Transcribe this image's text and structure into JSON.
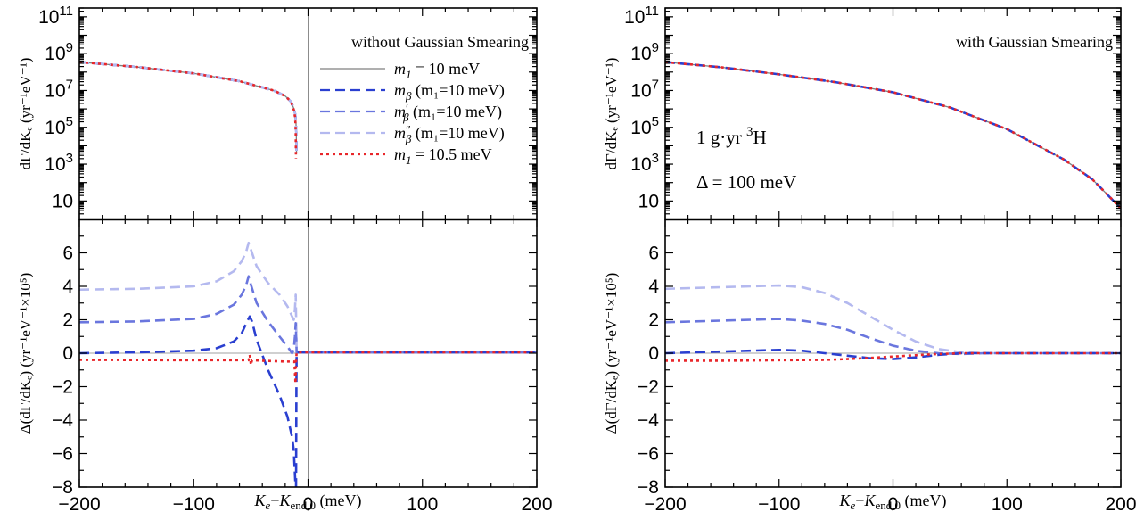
{
  "chart_data": [
    {
      "id": "left",
      "type": "line",
      "panel_annotation": "without Gaussian Smearing",
      "annotations": [],
      "xlabel": {
        "italic": "K",
        "sub_e": "e",
        "dash": "−",
        "italic2": "K",
        "sub_end": "end,0",
        "unit": " (meV)"
      },
      "xlim": [
        -200,
        200
      ],
      "xticks": [
        "−200",
        "−100",
        "0",
        "100",
        "200"
      ],
      "top": {
        "ylabel": "dΓ/dKₑ (yr⁻¹eV⁻¹)",
        "yscale": "log",
        "ylim": [
          1,
          300000000000.0
        ],
        "yticks": [
          {
            "value": 100000000000.0,
            "base": "10",
            "exp": "11"
          },
          {
            "value": 1000000000.0,
            "base": "10",
            "exp": "9"
          },
          {
            "value": 10000000.0,
            "base": "10",
            "exp": "7"
          },
          {
            "value": 100000.0,
            "base": "10",
            "exp": "5"
          },
          {
            "value": 1000.0,
            "base": "10",
            "exp": "3"
          },
          {
            "value": 10,
            "base": "10",
            "exp": ""
          }
        ],
        "series": [
          {
            "key": "m1",
            "color": "#7f7f7f",
            "x": [
              -200,
              -150,
              -100,
              -60,
              -30,
              -20,
              -15,
              -12,
              -11,
              -10.6,
              -10.3,
              -10.1
            ],
            "y": [
              350000000.0,
              190000000.0,
              85000000.0,
              32000000.0,
              10000000.0,
              5000000.0,
              2500000.0,
              900000.0,
              400000.0,
              200000.0,
              50000.0,
              4000.0
            ]
          },
          {
            "key": "mb",
            "color": "#2a3fd0",
            "x": [
              -200,
              -150,
              -100,
              -60,
              -30,
              -20,
              -15,
              -12,
              -11,
              -10.6,
              -10.3,
              -10.1
            ],
            "y": [
              350000000.0,
              190000000.0,
              85000000.0,
              32000000.0,
              10000000.0,
              5000000.0,
              2500000.0,
              900000.0,
              400000.0,
              200000.0,
              50000.0,
              4000.0
            ]
          },
          {
            "key": "mbp",
            "color": "#6a76de",
            "x": [
              -200,
              -150,
              -100,
              -60,
              -30,
              -20,
              -15,
              -12,
              -11,
              -10.6,
              -10.3,
              -10.1
            ],
            "y": [
              350000000.0,
              190000000.0,
              85000000.0,
              32000000.0,
              10000000.0,
              5000000.0,
              2500000.0,
              900000.0,
              400000.0,
              200000.0,
              50000.0,
              4000.0
            ]
          },
          {
            "key": "mbpp",
            "color": "#b4b9ef",
            "x": [
              -200,
              -150,
              -100,
              -60,
              -30,
              -20,
              -15,
              -12,
              -11,
              -10.6,
              -10.3,
              -10.1
            ],
            "y": [
              350000000.0,
              190000000.0,
              85000000.0,
              32000000.0,
              10000000.0,
              5000000.0,
              2500000.0,
              900000.0,
              400000.0,
              200000.0,
              50000.0,
              4000.0
            ]
          },
          {
            "key": "m105",
            "color": "#e8262a",
            "x": [
              -200,
              -150,
              -100,
              -60,
              -30,
              -20,
              -15,
              -12.5,
              -11.5,
              -11.1,
              -10.8,
              -10.6
            ],
            "y": [
              350000000.0,
              190000000.0,
              85000000.0,
              32000000.0,
              10000000.0,
              5000000.0,
              2500000.0,
              900000.0,
              400000.0,
              200000.0,
              50000.0,
              2000.0
            ]
          }
        ],
        "legend": [
          {
            "key": "m1",
            "sym": "m",
            "sub": "1",
            "prime": "",
            "suffix": " = 10 meV",
            "dash": "solid",
            "color": "#7f7f7f"
          },
          {
            "key": "mb",
            "sym": "m",
            "sub": "β",
            "prime": "",
            "suffix": " (m₁=10 meV)",
            "dash": "dashed",
            "color": "#2a3fd0"
          },
          {
            "key": "mbp",
            "sym": "m",
            "sub": "β",
            "prime": "′",
            "suffix": " (m₁=10 meV)",
            "dash": "dashed",
            "color": "#6a76de"
          },
          {
            "key": "mbpp",
            "sym": "m",
            "sub": "β",
            "prime": "″",
            "suffix": " (m₁=10 meV)",
            "dash": "dashed",
            "color": "#b4b9ef"
          },
          {
            "key": "m105",
            "sym": "m",
            "sub": "1",
            "prime": "",
            "suffix": " = 10.5 meV",
            "dash": "dotted",
            "color": "#e8262a"
          }
        ]
      },
      "bottom": {
        "ylabel": "Δ(dΓ/dKₑ) (yr⁻¹eV⁻¹×10⁵)",
        "ylim": [
          -8,
          8
        ],
        "yticks": [
          "6",
          "4",
          "2",
          "0",
          "−2",
          "−4",
          "−6",
          "−8"
        ],
        "series": [
          {
            "key": "mbpp",
            "color": "#b4b9ef",
            "x": [
              -200,
              -150,
              -100,
              -80,
              -65,
              -58,
              -54,
              -52,
              -50,
              -45,
              -35,
              -25,
              -18,
              -14,
              -12.5,
              -11.5,
              -10.8,
              -10.3,
              -10,
              0,
              200
            ],
            "y": [
              3.8,
              3.85,
              4.0,
              4.3,
              4.9,
              5.5,
              6.1,
              6.6,
              6.2,
              5.2,
              4.2,
              3.5,
              2.8,
              2.2,
              2.0,
              2.6,
              3.5,
              1.5,
              0.05,
              0.05,
              0.05
            ]
          },
          {
            "key": "mbp",
            "color": "#6a76de",
            "x": [
              -200,
              -150,
              -100,
              -80,
              -65,
              -58,
              -54,
              -52,
              -50,
              -45,
              -35,
              -25,
              -18,
              -14,
              -12.5,
              -11.5,
              -10.8,
              -10.3,
              -10,
              0,
              200
            ],
            "y": [
              1.85,
              1.9,
              2.05,
              2.35,
              2.9,
              3.5,
              4.1,
              4.6,
              4.1,
              3.0,
              1.9,
              1.0,
              0.4,
              0.0,
              0.2,
              1.0,
              1.8,
              0.8,
              0.05,
              0.05,
              0.05
            ]
          },
          {
            "key": "mb",
            "color": "#2a3fd0",
            "x": [
              -200,
              -150,
              -100,
              -80,
              -65,
              -58,
              -54,
              -51,
              -49,
              -45,
              -35,
              -25,
              -18,
              -14,
              -12.5,
              -11.5,
              -11,
              -10.5,
              -10.2,
              -10,
              0,
              200
            ],
            "y": [
              0.0,
              0.05,
              0.15,
              0.3,
              0.7,
              1.2,
              1.8,
              2.2,
              1.9,
              0.8,
              -1.0,
              -2.5,
              -3.8,
              -5.0,
              -5.8,
              -7.2,
              -8.0,
              -8.0,
              -2.0,
              0.05,
              0.05,
              0.05
            ]
          },
          {
            "key": "m105",
            "color": "#e8262a",
            "x": [
              -200,
              -100,
              -52,
              -51,
              -50,
              -49,
              -40,
              -20,
              -12,
              -11,
              -10.5,
              -10,
              0,
              200
            ],
            "y": [
              -0.4,
              -0.42,
              -0.42,
              -0.1,
              -0.7,
              -0.42,
              -0.45,
              -0.5,
              -0.5,
              -1.8,
              -0.5,
              0.05,
              0.05,
              0.05
            ]
          }
        ]
      }
    },
    {
      "id": "right",
      "type": "line",
      "panel_annotation": "with Gaussian Smearing",
      "annotations": [
        {
          "parts": [
            "1 g·yr  ",
            "3",
            "H"
          ]
        },
        {
          "parts": [
            "Δ = 100 meV"
          ]
        }
      ],
      "xlabel": {
        "italic": "K",
        "sub_e": "e",
        "dash": "−",
        "italic2": "K",
        "sub_end": "end,0",
        "unit": " (meV)"
      },
      "xlim": [
        -200,
        200
      ],
      "xticks": [
        "−200",
        "−100",
        "0",
        "100",
        "200"
      ],
      "top": {
        "ylabel": "dΓ/dKₑ (yr⁻¹eV⁻¹)",
        "yscale": "log",
        "ylim": [
          1,
          300000000000.0
        ],
        "yticks": [
          {
            "value": 100000000000.0,
            "base": "10",
            "exp": "11"
          },
          {
            "value": 1000000000.0,
            "base": "10",
            "exp": "9"
          },
          {
            "value": 10000000.0,
            "base": "10",
            "exp": "7"
          },
          {
            "value": 100000.0,
            "base": "10",
            "exp": "5"
          },
          {
            "value": 1000.0,
            "base": "10",
            "exp": "3"
          },
          {
            "value": 10,
            "base": "10",
            "exp": ""
          }
        ],
        "series": [
          {
            "key": "m1",
            "color": "#7f7f7f",
            "x": [
              -200,
              -150,
              -100,
              -50,
              0,
              50,
              100,
              150,
              175,
              200
            ],
            "y": [
              350000000.0,
              180000000.0,
              75000000.0,
              28000000.0,
              8000000.0,
              1200000.0,
              80000.0,
              1800.0,
              150.0,
              4
            ]
          },
          {
            "key": "mb",
            "color": "#2a3fd0",
            "x": [
              -200,
              -150,
              -100,
              -50,
              0,
              50,
              100,
              150,
              175,
              200
            ],
            "y": [
              350000000.0,
              180000000.0,
              75000000.0,
              28000000.0,
              8000000.0,
              1200000.0,
              80000.0,
              1800.0,
              150.0,
              4
            ]
          },
          {
            "key": "m105",
            "color": "#e8262a",
            "x": [
              -200,
              -150,
              -100,
              -50,
              0,
              50,
              100,
              150,
              175,
              200
            ],
            "y": [
              350000000.0,
              180000000.0,
              75000000.0,
              28000000.0,
              8000000.0,
              1200000.0,
              80000.0,
              1800.0,
              150.0,
              4
            ]
          }
        ],
        "legend": []
      },
      "bottom": {
        "ylabel": "Δ(dΓ/dKₑ) (yr⁻¹eV⁻¹×10⁵)",
        "ylim": [
          -8,
          8
        ],
        "yticks": [
          "6",
          "4",
          "2",
          "0",
          "−2",
          "−4",
          "−6",
          "−8"
        ],
        "series": [
          {
            "key": "mbpp",
            "color": "#b4b9ef",
            "x": [
              -200,
              -150,
              -100,
              -80,
              -60,
              -40,
              -20,
              0,
              20,
              40,
              60,
              80,
              200
            ],
            "y": [
              3.85,
              3.95,
              4.05,
              3.95,
              3.6,
              3.0,
              2.2,
              1.4,
              0.7,
              0.25,
              0.05,
              0.0,
              0.0
            ]
          },
          {
            "key": "mbp",
            "color": "#6a76de",
            "x": [
              -200,
              -150,
              -100,
              -80,
              -60,
              -40,
              -20,
              0,
              20,
              40,
              60,
              80,
              200
            ],
            "y": [
              1.85,
              1.95,
              2.05,
              1.95,
              1.75,
              1.4,
              0.9,
              0.45,
              0.15,
              0.0,
              -0.05,
              0.0,
              0.0
            ]
          },
          {
            "key": "mb",
            "color": "#2a3fd0",
            "x": [
              -200,
              -150,
              -100,
              -80,
              -60,
              -40,
              -20,
              0,
              20,
              40,
              60,
              80,
              200
            ],
            "y": [
              0.0,
              0.1,
              0.2,
              0.15,
              0.0,
              -0.15,
              -0.3,
              -0.35,
              -0.25,
              -0.1,
              0.0,
              0.0,
              0.0
            ]
          },
          {
            "key": "m105",
            "color": "#e8262a",
            "x": [
              -200,
              -150,
              -100,
              -60,
              -40,
              -20,
              0,
              20,
              40,
              60,
              80,
              200
            ],
            "y": [
              -0.45,
              -0.45,
              -0.42,
              -0.4,
              -0.35,
              -0.28,
              -0.2,
              -0.12,
              -0.05,
              0.0,
              0.0,
              0.0
            ]
          }
        ]
      }
    }
  ]
}
